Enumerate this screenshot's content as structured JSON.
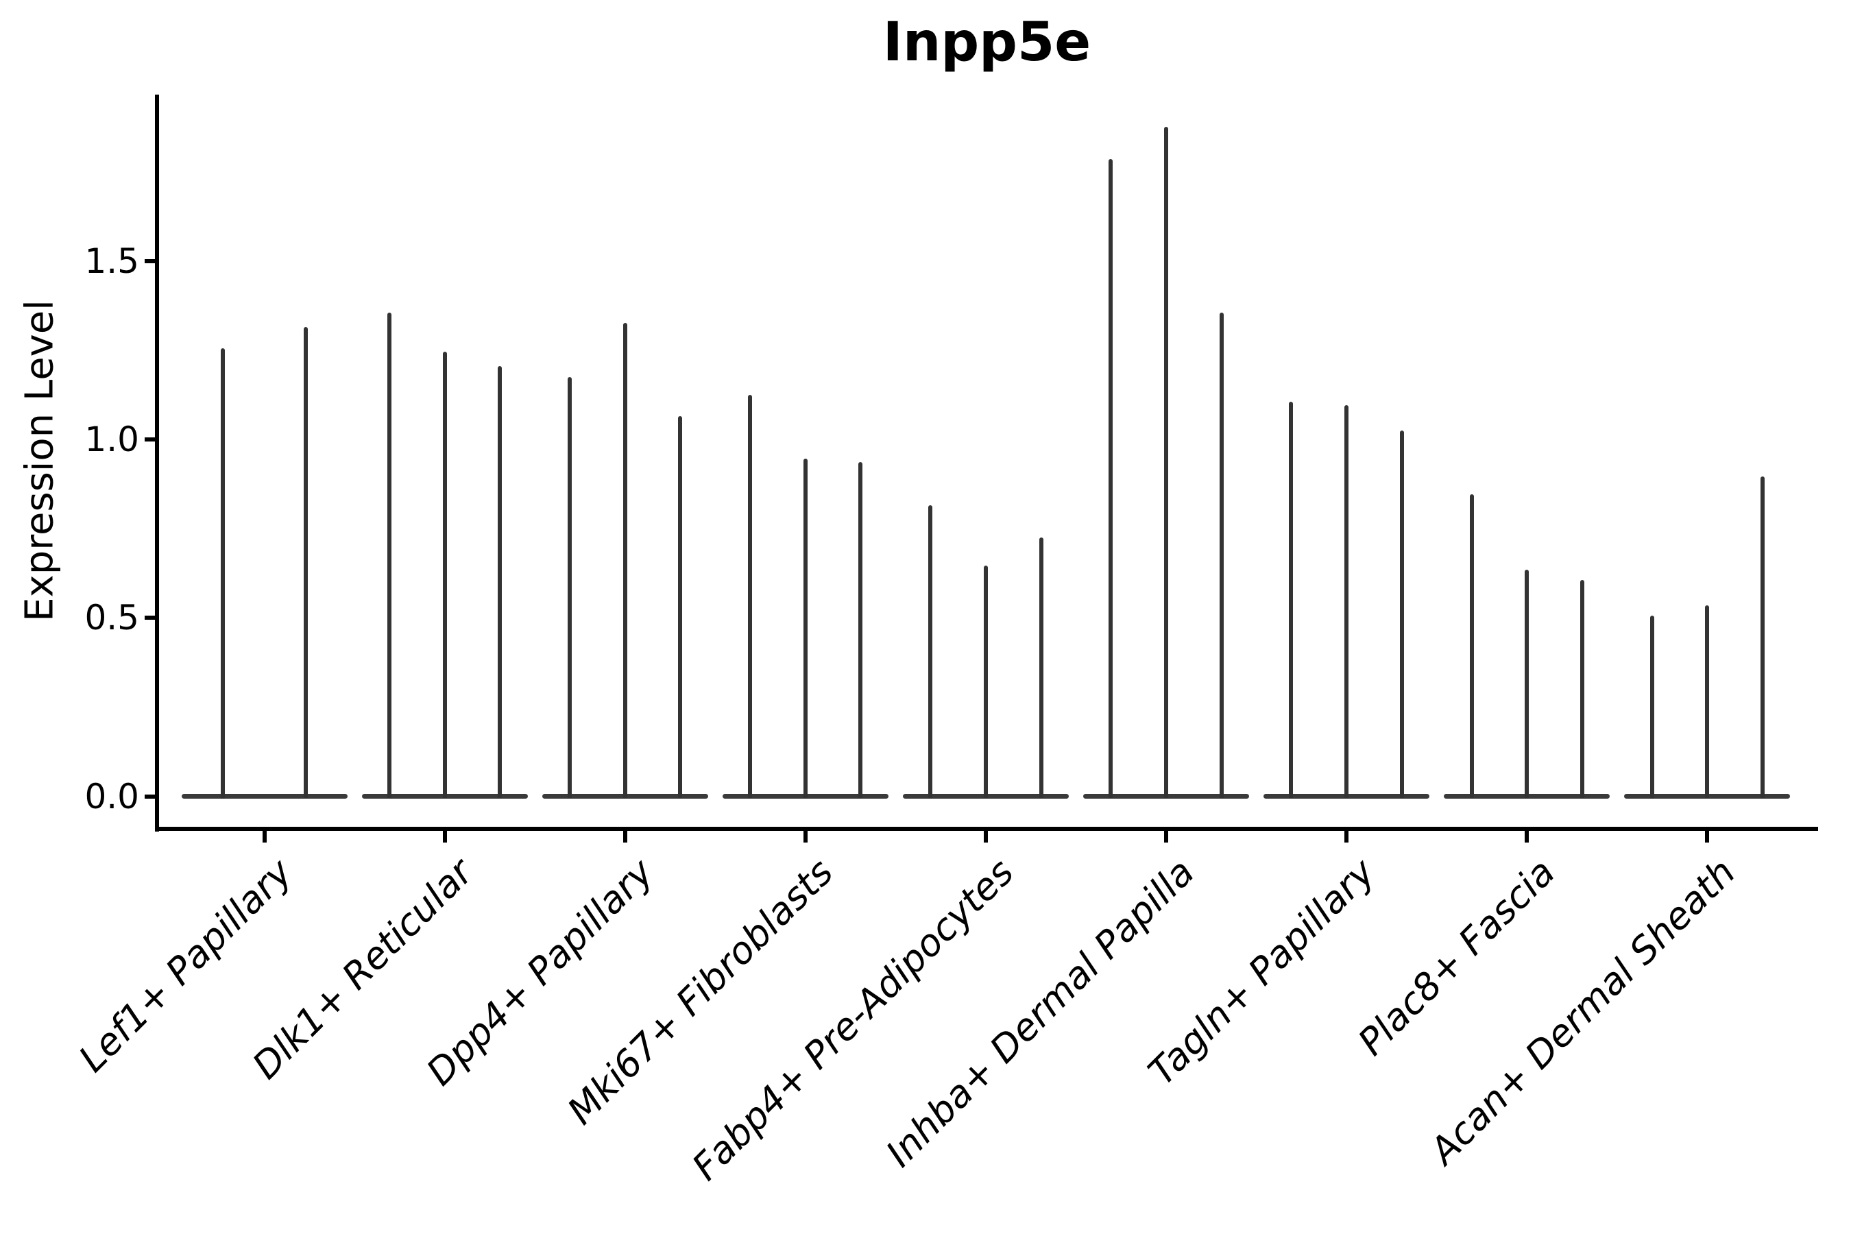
{
  "chart_data": {
    "type": "violin",
    "title": "Inpp5e",
    "ylabel": "Expression Level",
    "xlabel": "",
    "ylim": [
      -0.09,
      1.96
    ],
    "yticks": [
      0.0,
      0.5,
      1.0,
      1.5
    ],
    "ytick_labels": [
      "0.0",
      "0.5",
      "1.0",
      "1.5"
    ],
    "grid": false,
    "legend_position": "none",
    "style_note": "degenerate thin violins: mass concentrated at 0 with a narrow vertical spike up to each group's max expression",
    "categories": [
      "Lef1+ Papillary",
      "Dlk1+ Reticular",
      "Dpp4+ Papillary",
      "Mki67+ Fibroblasts",
      "Fabp4+ Pre-Adipocytes",
      "Inhba+ Dermal Papilla",
      "Tagln+ Papillary",
      "Plac8+ Fascia",
      "Acan+ Dermal Sheath"
    ],
    "series": [
      {
        "category": "Lef1+ Papillary",
        "spike_min": 0,
        "spike_max_values": [
          1.25,
          1.31
        ]
      },
      {
        "category": "Dlk1+ Reticular",
        "spike_min": 0,
        "spike_max_values": [
          1.35,
          1.24,
          1.2
        ]
      },
      {
        "category": "Dpp4+ Papillary",
        "spike_min": 0,
        "spike_max_values": [
          1.17,
          1.32,
          1.06
        ]
      },
      {
        "category": "Mki67+ Fibroblasts",
        "spike_min": 0,
        "spike_max_values": [
          1.12,
          0.94,
          0.93
        ]
      },
      {
        "category": "Fabp4+ Pre-Adipocytes",
        "spike_min": 0,
        "spike_max_values": [
          0.81,
          0.64,
          0.72
        ]
      },
      {
        "category": "Inhba+ Dermal Papilla",
        "spike_min": 0,
        "spike_max_values": [
          1.78,
          1.87,
          1.35
        ]
      },
      {
        "category": "Tagln+ Papillary",
        "spike_min": 0,
        "spike_max_values": [
          1.1,
          1.09,
          1.02
        ]
      },
      {
        "category": "Plac8+ Fascia",
        "spike_min": 0,
        "spike_max_values": [
          0.84,
          0.63,
          0.6
        ]
      },
      {
        "category": "Acan+ Dermal Sheath",
        "spike_min": 0,
        "spike_max_values": [
          0.5,
          0.53,
          0.89
        ]
      }
    ],
    "colors": {
      "spike": "#333333",
      "baseline": "#3a3a3a",
      "axis": "#000000",
      "text": "#000000",
      "background": "#ffffff"
    }
  }
}
